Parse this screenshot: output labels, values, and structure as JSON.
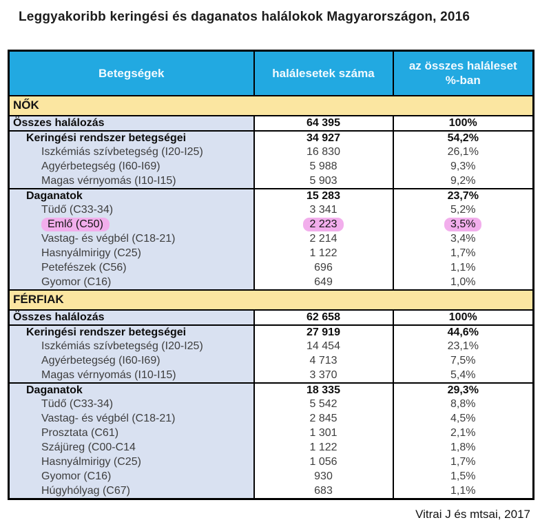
{
  "title": "Leggyakoribb keringési és daganatos halálokok Magyarországon, 2016",
  "footer": "Vitrai J és mtsai, 2017",
  "colors": {
    "header-blue": "#22a9e1",
    "band-yellow": "#fbe6a1",
    "label-lavender": "#d9e1f1",
    "highlight-pink": "#f2aeec",
    "border-black": "#000000"
  },
  "table": {
    "columns": {
      "diseases": "Betegségek",
      "deaths": "halálesetek száma",
      "percent": "az összes haláleset %-ban"
    },
    "sections": [
      {
        "label": "NŐK",
        "rows": [
          {
            "type": "total",
            "label": "Összes halálozás",
            "count": "64 395",
            "pct": "100%"
          },
          {
            "type": "group",
            "label": "Keringési rendszer betegségei",
            "count": "34 927",
            "pct": "54,2%"
          },
          {
            "type": "leaf",
            "label": "Iszkémiás szívbetegség (I20-I25)",
            "count": "16 830",
            "pct": "26,1%"
          },
          {
            "type": "leaf",
            "label": "Agyérbetegség (I60-I69)",
            "count": "5 988",
            "pct": "9,3%"
          },
          {
            "type": "leaf",
            "label": "Magas vérnyomás (I10-I15)",
            "count": "5 903",
            "pct": "9,2%"
          },
          {
            "type": "group",
            "label": "Daganatok",
            "count": "15 283",
            "pct": "23,7%"
          },
          {
            "type": "leaf",
            "label": "Tüdő (C33-34)",
            "count": "3 341",
            "pct": "5,2%"
          },
          {
            "type": "leaf",
            "label": "Emlő (C50)",
            "count": "2 223",
            "pct": "3,5%",
            "highlight": true
          },
          {
            "type": "leaf",
            "label": "Vastag- és végbél (C18-21)",
            "count": "2 214",
            "pct": "3,4%"
          },
          {
            "type": "leaf",
            "label": "Hasnyálmirigy (C25)",
            "count": "1 122",
            "pct": "1,7%"
          },
          {
            "type": "leaf",
            "label": "Petefészek (C56)",
            "count": "696",
            "pct": "1,1%"
          },
          {
            "type": "leaf",
            "label": "Gyomor (C16)",
            "count": "649",
            "pct": "1,0%"
          }
        ]
      },
      {
        "label": "FÉRFIAK",
        "rows": [
          {
            "type": "total",
            "label": "Összes halálozás",
            "count": "62 658",
            "pct": "100%"
          },
          {
            "type": "group",
            "label": "Keringési rendszer betegségei",
            "count": "27 919",
            "pct": "44,6%"
          },
          {
            "type": "leaf",
            "label": "Iszkémiás szívbetegség (I20-I25)",
            "count": "14 454",
            "pct": "23,1%"
          },
          {
            "type": "leaf",
            "label": "Agyérbetegség (I60-I69)",
            "count": "4 713",
            "pct": "7,5%"
          },
          {
            "type": "leaf",
            "label": "Magas vérnyomás (I10-I15)",
            "count": "3 370",
            "pct": "5,4%"
          },
          {
            "type": "group",
            "label": "Daganatok",
            "count": "18 335",
            "pct": "29,3%"
          },
          {
            "type": "leaf",
            "label": "Tüdő (C33-34)",
            "count": "5 542",
            "pct": "8,8%"
          },
          {
            "type": "leaf",
            "label": "Vastag- és végbél (C18-21)",
            "count": "2 845",
            "pct": "4,5%"
          },
          {
            "type": "leaf",
            "label": "Prosztata (C61)",
            "count": "1 301",
            "pct": "2,1%"
          },
          {
            "type": "leaf",
            "label": "Szájüreg (C00-C14",
            "count": "1 122",
            "pct": "1,8%"
          },
          {
            "type": "leaf",
            "label": "Hasnyálmirigy (C25)",
            "count": "1 056",
            "pct": "1,7%"
          },
          {
            "type": "leaf",
            "label": "Gyomor (C16)",
            "count": "930",
            "pct": "1,5%"
          },
          {
            "type": "leaf",
            "label": "Húgyhólyag (C67)",
            "count": "683",
            "pct": "1,1%"
          }
        ]
      }
    ]
  }
}
